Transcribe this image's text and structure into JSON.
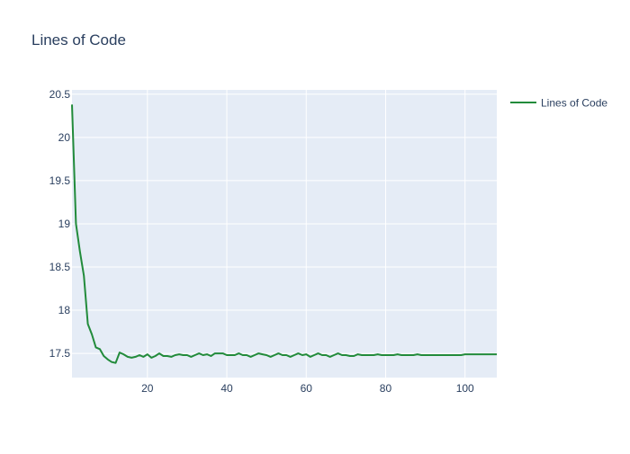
{
  "chart_data": {
    "type": "line",
    "title": "Lines of Code",
    "xlabel": "",
    "ylabel": "",
    "xlim": [
      1,
      108
    ],
    "ylim": [
      17.22,
      20.55
    ],
    "xticks": [
      20,
      40,
      60,
      80,
      100
    ],
    "yticks": [
      17.5,
      18,
      18.5,
      19,
      19.5,
      20,
      20.5
    ],
    "ytick_labels": [
      "17.5",
      "18",
      "18.5",
      "19",
      "19.5",
      "20",
      "20.5"
    ],
    "grid": true,
    "legend_position": "top-right",
    "colors": {
      "plot_bg": "#e5ecf6",
      "grid": "#ffffff",
      "text": "#2a3f5f",
      "series": "#228b3b"
    },
    "series": [
      {
        "name": "Lines of Code",
        "x": [
          1,
          2,
          3,
          4,
          5,
          6,
          7,
          8,
          9,
          10,
          11,
          12,
          13,
          14,
          15,
          16,
          17,
          18,
          19,
          20,
          21,
          22,
          23,
          24,
          25,
          26,
          27,
          28,
          29,
          30,
          31,
          32,
          33,
          34,
          35,
          36,
          37,
          38,
          39,
          40,
          41,
          42,
          43,
          44,
          45,
          46,
          47,
          48,
          49,
          50,
          51,
          52,
          53,
          54,
          55,
          56,
          57,
          58,
          59,
          60,
          61,
          62,
          63,
          64,
          65,
          66,
          67,
          68,
          69,
          70,
          71,
          72,
          73,
          74,
          75,
          76,
          77,
          78,
          79,
          80,
          81,
          82,
          83,
          84,
          85,
          86,
          87,
          88,
          89,
          90,
          91,
          92,
          93,
          94,
          95,
          96,
          97,
          98,
          99,
          100,
          101,
          102,
          103,
          104,
          105,
          106,
          107,
          108
        ],
        "y": [
          20.38,
          19.0,
          18.68,
          18.4,
          17.84,
          17.72,
          17.57,
          17.55,
          17.47,
          17.43,
          17.4,
          17.39,
          17.51,
          17.49,
          17.46,
          17.45,
          17.46,
          17.48,
          17.46,
          17.49,
          17.45,
          17.47,
          17.5,
          17.47,
          17.47,
          17.46,
          17.48,
          17.49,
          17.48,
          17.48,
          17.46,
          17.48,
          17.5,
          17.48,
          17.49,
          17.47,
          17.5,
          17.5,
          17.5,
          17.48,
          17.48,
          17.48,
          17.5,
          17.48,
          17.48,
          17.46,
          17.48,
          17.5,
          17.49,
          17.48,
          17.46,
          17.48,
          17.5,
          17.48,
          17.48,
          17.46,
          17.48,
          17.5,
          17.48,
          17.49,
          17.46,
          17.48,
          17.5,
          17.48,
          17.48,
          17.46,
          17.48,
          17.5,
          17.48,
          17.48,
          17.47,
          17.47,
          17.49,
          17.48,
          17.48,
          17.48,
          17.48,
          17.49,
          17.48,
          17.48,
          17.48,
          17.48,
          17.49,
          17.48,
          17.48,
          17.48,
          17.48,
          17.49,
          17.48,
          17.48,
          17.48,
          17.48,
          17.48,
          17.48,
          17.48,
          17.48,
          17.48,
          17.48,
          17.48,
          17.49,
          17.49,
          17.49,
          17.49,
          17.49,
          17.49,
          17.49,
          17.49,
          17.49
        ]
      }
    ]
  }
}
